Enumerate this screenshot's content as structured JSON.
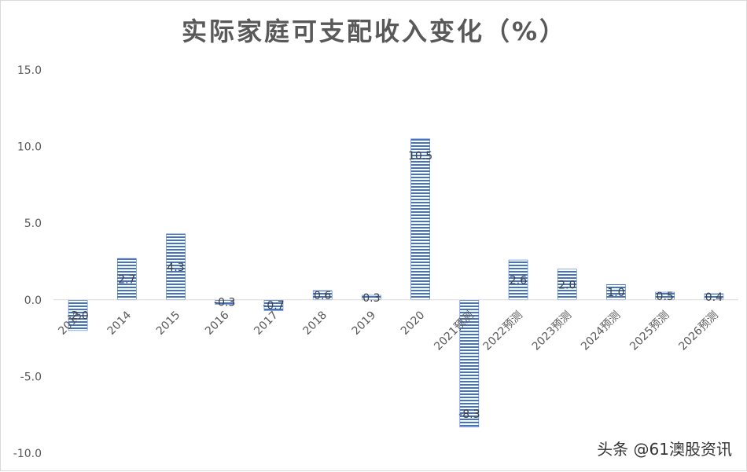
{
  "chart_data": {
    "type": "bar",
    "title": "实际家庭可支配收入变化（%）",
    "categories": [
      "2013",
      "2014",
      "2015",
      "2016",
      "2017",
      "2018",
      "2019",
      "2020",
      "2021预测",
      "2022预测",
      "2023预测",
      "2024预测",
      "2025预测",
      "2026预测"
    ],
    "values": [
      -2.0,
      2.7,
      4.3,
      -0.3,
      -0.7,
      0.6,
      0.3,
      10.5,
      -8.3,
      2.6,
      2.0,
      1.0,
      0.5,
      0.4
    ],
    "data_labels": [
      "-2.0",
      "2.7",
      "4.3",
      "-0.3",
      "-0.7",
      "0.6",
      "0.3",
      "10.5",
      "-8.3",
      "2.6",
      "2.0",
      "1.0",
      "0.5",
      "0.4"
    ],
    "y_ticks": [
      "15.0",
      "10.0",
      "5.0",
      "0.0",
      "-5.0",
      "-10.0"
    ],
    "ylim": [
      -10,
      15
    ],
    "grid": false,
    "legend": "none",
    "bar_color": "#4472c4"
  },
  "watermark": "头条 @61澳股资讯"
}
